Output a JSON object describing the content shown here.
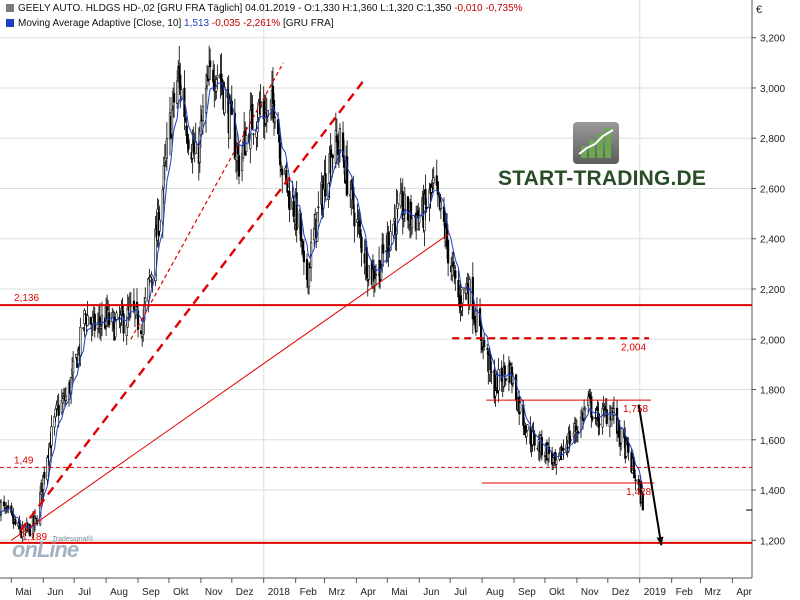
{
  "header": {
    "line1": {
      "instrument": "GEELY AUTO. HLDGS  HD-,02 [GRU FRA  Täglich]",
      "date": "04.01.2019",
      "ohlc_pre": " - O:1,330 H:1,360 L:1,320 C:1,350",
      "change": "-0,010 -0,735%"
    },
    "line2": {
      "indicator": "Moving Average Adaptive [Close, 10]",
      "value": "1,513",
      "change": "-0,035 -2,261%",
      "suffix": "[GRU FRA]"
    }
  },
  "currency_symbol": "€",
  "branding": {
    "site": "START-TRADING.DE",
    "provider_small": "Tradesignal®",
    "provider_big": "onLine"
  },
  "colors": {
    "candle_up": "#ffffff",
    "candle_down": "#000000",
    "moving_average": "#1f3fbf",
    "annotation": "#e00000",
    "grid": "#d8e2d8",
    "brand_green": "#2a4d28"
  },
  "chart_data": {
    "type": "candlestick",
    "price_axis": {
      "min": 1.05,
      "max": 3.35,
      "ticks": [
        1.2,
        1.4,
        1.6,
        1.8,
        2.0,
        2.2,
        2.4,
        2.6,
        2.8,
        3.0,
        3.2
      ],
      "tick_labels": [
        "1,200",
        "1,400",
        "1,600",
        "1,800",
        "2,000",
        "2,200",
        "2,400",
        "2,600",
        "2,800",
        "3,000",
        "3,200"
      ],
      "side": "right"
    },
    "time_axis": {
      "start": "2017-04-20",
      "end": "2019-04-20",
      "months": [
        {
          "label": "Mai",
          "date": "2017-05-01"
        },
        {
          "label": "Jun",
          "date": "2017-06-01"
        },
        {
          "label": "Jul",
          "date": "2017-07-01"
        },
        {
          "label": "Aug",
          "date": "2017-08-01"
        },
        {
          "label": "Sep",
          "date": "2017-09-01"
        },
        {
          "label": "Okt",
          "date": "2017-10-01"
        },
        {
          "label": "Nov",
          "date": "2017-11-01"
        },
        {
          "label": "Dez",
          "date": "2017-12-01"
        },
        {
          "label": "2018",
          "date": "2018-01-01"
        },
        {
          "label": "Feb",
          "date": "2018-02-01"
        },
        {
          "label": "Mrz",
          "date": "2018-03-01"
        },
        {
          "label": "Apr",
          "date": "2018-04-01"
        },
        {
          "label": "Mai",
          "date": "2018-05-01"
        },
        {
          "label": "Jun",
          "date": "2018-06-01"
        },
        {
          "label": "Jul",
          "date": "2018-07-01"
        },
        {
          "label": "Aug",
          "date": "2018-08-01"
        },
        {
          "label": "Sep",
          "date": "2018-09-01"
        },
        {
          "label": "Okt",
          "date": "2018-10-01"
        },
        {
          "label": "Nov",
          "date": "2018-11-01"
        },
        {
          "label": "Dez",
          "date": "2018-12-01"
        },
        {
          "label": "2019",
          "date": "2019-01-01"
        },
        {
          "label": "Feb",
          "date": "2019-02-01"
        },
        {
          "label": "Mrz",
          "date": "2019-03-01"
        },
        {
          "label": "Apr",
          "date": "2019-04-01"
        }
      ]
    },
    "grid": true,
    "price_path": [
      [
        "2017-04-20",
        1.34
      ],
      [
        "2017-05-05",
        1.26
      ],
      [
        "2017-05-12",
        1.22
      ],
      [
        "2017-05-25",
        1.27
      ],
      [
        "2017-06-05",
        1.55
      ],
      [
        "2017-06-15",
        1.72
      ],
      [
        "2017-06-25",
        1.78
      ],
      [
        "2017-07-05",
        1.95
      ],
      [
        "2017-07-12",
        2.1
      ],
      [
        "2017-07-20",
        2.05
      ],
      [
        "2017-08-01",
        2.08
      ],
      [
        "2017-08-10",
        2.05
      ],
      [
        "2017-08-25",
        2.1
      ],
      [
        "2017-09-05",
        2.06
      ],
      [
        "2017-09-15",
        2.3
      ],
      [
        "2017-09-25",
        2.6
      ],
      [
        "2017-10-02",
        2.85
      ],
      [
        "2017-10-10",
        3.05
      ],
      [
        "2017-10-20",
        2.82
      ],
      [
        "2017-10-28",
        2.7
      ],
      [
        "2017-11-05",
        2.95
      ],
      [
        "2017-11-12",
        3.08
      ],
      [
        "2017-11-20",
        3.05
      ],
      [
        "2017-11-28",
        2.9
      ],
      [
        "2017-12-08",
        2.7
      ],
      [
        "2017-12-18",
        2.85
      ],
      [
        "2017-12-28",
        2.92
      ],
      [
        "2018-01-05",
        2.88
      ],
      [
        "2018-01-12",
        2.95
      ],
      [
        "2018-01-20",
        2.65
      ],
      [
        "2018-01-28",
        2.55
      ],
      [
        "2018-02-05",
        2.45
      ],
      [
        "2018-02-10",
        2.2
      ],
      [
        "2018-02-18",
        2.4
      ],
      [
        "2018-02-28",
        2.6
      ],
      [
        "2018-03-08",
        2.75
      ],
      [
        "2018-03-16",
        2.78
      ],
      [
        "2018-03-25",
        2.6
      ],
      [
        "2018-04-05",
        2.4
      ],
      [
        "2018-04-15",
        2.25
      ],
      [
        "2018-04-25",
        2.3
      ],
      [
        "2018-05-05",
        2.45
      ],
      [
        "2018-05-15",
        2.52
      ],
      [
        "2018-05-25",
        2.48
      ],
      [
        "2018-06-05",
        2.5
      ],
      [
        "2018-06-15",
        2.6
      ],
      [
        "2018-06-25",
        2.45
      ],
      [
        "2018-07-01",
        2.3
      ],
      [
        "2018-07-10",
        2.15
      ],
      [
        "2018-07-18",
        2.22
      ],
      [
        "2018-07-28",
        2.05
      ],
      [
        "2018-08-05",
        1.95
      ],
      [
        "2018-08-12",
        1.8
      ],
      [
        "2018-08-20",
        1.85
      ],
      [
        "2018-08-28",
        1.88
      ],
      [
        "2018-09-05",
        1.75
      ],
      [
        "2018-09-15",
        1.62
      ],
      [
        "2018-09-25",
        1.58
      ],
      [
        "2018-10-05",
        1.55
      ],
      [
        "2018-10-12",
        1.48
      ],
      [
        "2018-10-20",
        1.58
      ],
      [
        "2018-10-28",
        1.62
      ],
      [
        "2018-11-05",
        1.68
      ],
      [
        "2018-11-12",
        1.75
      ],
      [
        "2018-11-20",
        1.68
      ],
      [
        "2018-11-28",
        1.7
      ],
      [
        "2018-12-05",
        1.72
      ],
      [
        "2018-12-12",
        1.62
      ],
      [
        "2018-12-20",
        1.55
      ],
      [
        "2018-12-28",
        1.45
      ],
      [
        "2019-01-04",
        1.35
      ]
    ],
    "moving_average": {
      "name": "Moving Average Adaptive [Close, 10]",
      "last_value": 1.513
    },
    "horizontal_levels": [
      {
        "value": 2.136,
        "label": "2,136",
        "from": "2017-04-20",
        "to": "2019-04-20",
        "style": "solid"
      },
      {
        "value": 1.19,
        "label": "1,189",
        "from": "2017-04-20",
        "to": "2019-04-20",
        "style": "solid"
      },
      {
        "value": 1.49,
        "label": "1,49",
        "from": "2017-04-20",
        "to": "2019-04-20",
        "style": "dashed"
      },
      {
        "value": 2.004,
        "label": "2,004",
        "from": "2018-07-03",
        "to": "2019-01-10",
        "style": "dashed"
      },
      {
        "value": 1.758,
        "label": "1,758",
        "from": "2018-08-05",
        "to": "2019-01-12",
        "style": "solid-thin"
      },
      {
        "value": 1.428,
        "label": "1,428",
        "from": "2018-08-01",
        "to": "2019-01-15",
        "style": "solid-thin"
      }
    ],
    "trend_lines": [
      {
        "from": [
          "2017-05-01",
          1.2
        ],
        "to": [
          "2018-06-30",
          2.42
        ],
        "style": "solid-thin"
      },
      {
        "from": [
          "2017-05-10",
          1.24
        ],
        "to": [
          "2018-04-10",
          3.04
        ],
        "style": "dashed-thick"
      },
      {
        "from": [
          "2017-08-25",
          2.0
        ],
        "to": [
          "2018-01-20",
          3.1
        ],
        "style": "dashed-thin"
      }
    ],
    "arrow": {
      "from": [
        "2018-12-31",
        1.74
      ],
      "to": [
        "2019-01-22",
        1.18
      ]
    }
  }
}
